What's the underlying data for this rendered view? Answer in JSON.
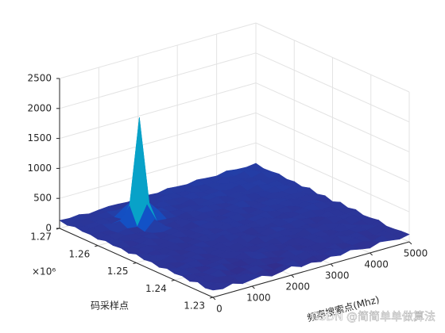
{
  "chart_data": {
    "type": "surface",
    "x": [
      0,
      250,
      500,
      750,
      1000,
      1250,
      1500,
      1750,
      2000,
      2250,
      2500,
      2750,
      3000,
      3250,
      3500,
      3750,
      4000,
      4250,
      4500,
      4750,
      5000
    ],
    "y": [
      1230000,
      1232000,
      1234000,
      1236000,
      1238000,
      1240000,
      1242000,
      1244000,
      1246000,
      1248000,
      1250000,
      1252000,
      1254000,
      1256000,
      1258000,
      1260000,
      1262000,
      1264000,
      1266000,
      1268000,
      1270000
    ],
    "z": [
      [
        120,
        95,
        140,
        88,
        110,
        132,
        76,
        105,
        150,
        92,
        118,
        84,
        127,
        99,
        143,
        108,
        81,
        136,
        115,
        90,
        124
      ],
      [
        98,
        135,
        82,
        117,
        146,
        91,
        123,
        79,
        108,
        139,
        86,
        121,
        103,
        148,
        94,
        112,
        131,
        87,
        142,
        106,
        119
      ],
      [
        141,
        87,
        125,
        102,
        79,
        118,
        137,
        96,
        84,
        129,
        111,
        145,
        89,
        106,
        122,
        97,
        138,
        115,
        83,
        127,
        101
      ],
      [
        93,
        128,
        110,
        147,
        85,
        104,
        89,
        133,
        119,
        77,
        142,
        98,
        116,
        131,
        88,
        149,
        102,
        124,
        109,
        136,
        92
      ],
      [
        126,
        104,
        89,
        121,
        138,
        96,
        115,
        102,
        145,
        111,
        93,
        127,
        84,
        119,
        137,
        91,
        123,
        106,
        141,
        97,
        132
      ],
      [
        108,
        143,
        117,
        92,
        106,
        129,
        83,
        148,
        95,
        124,
        136,
        88,
        141,
        105,
        113,
        129,
        96,
        152,
        88,
        121,
        110
      ],
      [
        135,
        91,
        128,
        140,
        97,
        112,
        139,
        87,
        121,
        106,
        99,
        133,
        118,
        92,
        146,
        108,
        135,
        94,
        127,
        144,
        99
      ],
      [
        97,
        122,
        86,
        113,
        131,
        89,
        124,
        110,
        138,
        92,
        147,
        105,
        129,
        138,
        97,
        123,
        88,
        141,
        116,
        103,
        137
      ],
      [
        129,
        108,
        144,
        95,
        118,
        142,
        101,
        127,
        93,
        135,
        112,
        91,
        146,
        109,
        124,
        151,
        117,
        98,
        133,
        125,
        108
      ],
      [
        111,
        137,
        99,
        128,
        86,
        121,
        134,
        96,
        149,
        118,
        103,
        139,
        97,
        122,
        141,
        106,
        129,
        147,
        102,
        118,
        145
      ],
      [
        144,
        94,
        121,
        107,
        139,
        98,
        113,
        142,
        105,
        127,
        132,
        114,
        135,
        151,
        92,
        137,
        109,
        124,
        156,
        131,
        96
      ],
      [
        102,
        125,
        138,
        91,
        124,
        133,
        96,
        119,
        137,
        99,
        145,
        121,
        108,
        127,
        148,
        115,
        142,
        103,
        129,
        112,
        138
      ],
      [
        131,
        98,
        113,
        146,
        102,
        117,
        141,
        108,
        123,
        148,
        111,
        134,
        152,
        99,
        125,
        139,
        118,
        157,
        121,
        145,
        107
      ],
      [
        115,
        142,
        96,
        124,
        137,
        105,
        128,
        94,
        139,
        116,
        129,
        101,
        126,
        143,
        113,
        131,
        147,
        109,
        136,
        118,
        151
      ],
      [
        138,
        107,
        131,
        118,
        98,
        260,
        112,
        136,
        121,
        103,
        141,
        127,
        114,
        139,
        158,
        104,
        123,
        146,
        128,
        160,
        114
      ],
      [
        104,
        129,
        117,
        143,
        125,
        450,
        133,
        119,
        108,
        144,
        118,
        152,
        131,
        106,
        129,
        148,
        137,
        121,
        154,
        127,
        142
      ],
      [
        127,
        116,
        102,
        210,
        420,
        1850,
        380,
        200,
        137,
        122,
        135,
        109,
        143,
        157,
        121,
        136,
        113,
        163,
        132,
        149,
        126
      ],
      [
        119,
        134,
        145,
        111,
        138,
        400,
        117,
        128,
        149,
        131,
        107,
        146,
        124,
        138,
        152,
        119,
        158,
        135,
        147,
        118,
        155
      ],
      [
        141,
        103,
        126,
        137,
        114,
        230,
        142,
        109,
        123,
        155,
        139,
        128,
        161,
        117,
        133,
        164,
        127,
        149,
        121,
        166,
        138
      ],
      [
        108,
        139,
        118,
        129,
        147,
        121,
        106,
        143,
        132,
        116,
        148,
        134,
        119,
        153,
        141,
        126,
        159,
        137,
        168,
        142,
        129
      ],
      [
        132,
        121,
        137,
        104,
        123,
        136,
        129,
        117,
        146,
        138,
        125,
        157,
        142,
        131,
        162,
        145,
        133,
        171,
        148,
        139,
        160
      ]
    ],
    "xlim": [
      0,
      5000
    ],
    "xticks": [
      0,
      1000,
      2000,
      3000,
      4000,
      5000
    ],
    "ylim": [
      1230000,
      1270000
    ],
    "yticks": [
      {
        "value": 1230000,
        "label": "1.23"
      },
      {
        "value": 1240000,
        "label": "1.24"
      },
      {
        "value": 1250000,
        "label": "1.25"
      },
      {
        "value": 1260000,
        "label": "1.26"
      },
      {
        "value": 1270000,
        "label": "1.27"
      }
    ],
    "y_multiplier": "×10⁶",
    "zlim": [
      0,
      2500
    ],
    "zticks": [
      0,
      500,
      1000,
      1500,
      2000,
      2500
    ],
    "xlabel": "频率搜索点(Mhz)",
    "ylabel": "码采样点",
    "grid": true,
    "colormap": "parula",
    "watermark": "CSDN @简简单单做算法"
  }
}
